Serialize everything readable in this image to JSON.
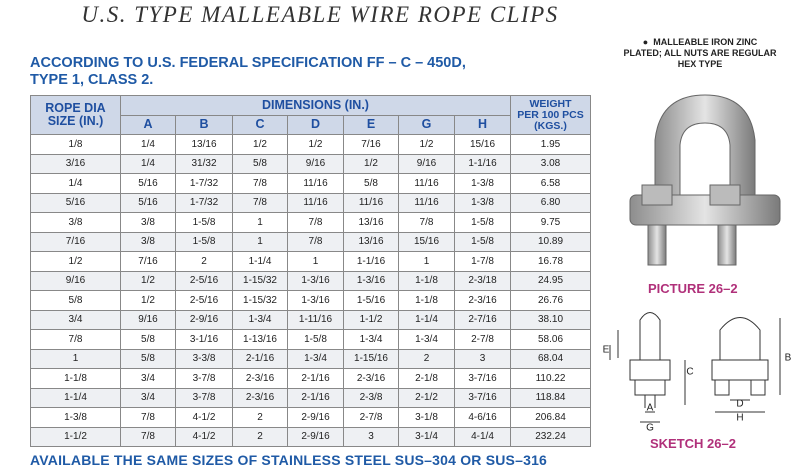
{
  "title": "U.S. TYPE MALLEABLE WIRE ROPE CLIPS",
  "subtitle": [
    "ACCORDING TO  U.S. FEDERAL SPECIFICATION  FF – C – 450D,",
    "TYPE 1, CLASS 2."
  ],
  "table": {
    "header": {
      "rope": [
        "ROPE DIA",
        "SIZE (IN.)"
      ],
      "dimensions": "DIMENSIONS  (IN.)",
      "columns": [
        "A",
        "B",
        "C",
        "D",
        "E",
        "G",
        "H"
      ],
      "weight": [
        "WEIGHT",
        "PER 100 PCS",
        "(KGS.)"
      ]
    },
    "rows": [
      [
        "1/8",
        "1/4",
        "13/16",
        "1/2",
        "1/2",
        "7/16",
        "1/2",
        "15/16",
        "1.95"
      ],
      [
        "3/16",
        "1/4",
        "31/32",
        "5/8",
        "9/16",
        "1/2",
        "9/16",
        "1-1/16",
        "3.08"
      ],
      [
        "1/4",
        "5/16",
        "1-7/32",
        "7/8",
        "11/16",
        "5/8",
        "11/16",
        "1-3/8",
        "6.58"
      ],
      [
        "5/16",
        "5/16",
        "1-7/32",
        "7/8",
        "11/16",
        "11/16",
        "11/16",
        "1-3/8",
        "6.80"
      ],
      [
        "3/8",
        "3/8",
        "1-5/8",
        "1",
        "7/8",
        "13/16",
        "7/8",
        "1-5/8",
        "9.75"
      ],
      [
        "7/16",
        "3/8",
        "1-5/8",
        "1",
        "7/8",
        "13/16",
        "15/16",
        "1-5/8",
        "10.89"
      ],
      [
        "1/2",
        "7/16",
        "2",
        "1-1/4",
        "1",
        "1-1/16",
        "1",
        "1-7/8",
        "16.78"
      ],
      [
        "9/16",
        "1/2",
        "2-5/16",
        "1-15/32",
        "1-3/16",
        "1-3/16",
        "1-1/8",
        "2-3/18",
        "24.95"
      ],
      [
        "5/8",
        "1/2",
        "2-5/16",
        "1-15/32",
        "1-3/16",
        "1-5/16",
        "1-1/8",
        "2-3/16",
        "26.76"
      ],
      [
        "3/4",
        "9/16",
        "2-9/16",
        "1-3/4",
        "1-11/16",
        "1-1/2",
        "1-1/4",
        "2-7/16",
        "38.10"
      ],
      [
        "7/8",
        "5/8",
        "3-1/16",
        "1-13/16",
        "1-5/8",
        "1-3/4",
        "1-3/4",
        "2-7/8",
        "58.06"
      ],
      [
        "1",
        "5/8",
        "3-3/8",
        "2-1/16",
        "1-3/4",
        "1-15/16",
        "2",
        "3",
        "68.04"
      ],
      [
        "1-1/8",
        "3/4",
        "3-7/8",
        "2-3/16",
        "2-1/16",
        "2-3/16",
        "2-1/8",
        "3-7/16",
        "110.22"
      ],
      [
        "1-1/4",
        "3/4",
        "3-7/8",
        "2-3/16",
        "2-1/16",
        "2-3/8",
        "2-1/2",
        "3-7/16",
        "118.84"
      ],
      [
        "1-3/8",
        "7/8",
        "4-1/2",
        "2",
        "2-9/16",
        "2-7/8",
        "3-1/8",
        "4-6/16",
        "206.84"
      ],
      [
        "1-1/2",
        "7/8",
        "4-1/2",
        "2",
        "2-9/16",
        "3",
        "3-1/4",
        "4-1/4",
        "232.24"
      ]
    ]
  },
  "footer": "AVAILABLE THE SAME SIZES OF STAINLESS STEEL SUS–304 OR SUS–316",
  "note": [
    "MALLEABLE IRON ZINC",
    "PLATED; ALL NUTS ARE REGULAR",
    "HEX  TYPE"
  ],
  "picture_caption": "PICTURE 26–2",
  "sketch_caption": "SKETCH  26–2",
  "sketch_labels": {
    "E": "E",
    "C": "C",
    "A": "A",
    "G": "G",
    "D": "D",
    "H": "H",
    "B": "B"
  }
}
